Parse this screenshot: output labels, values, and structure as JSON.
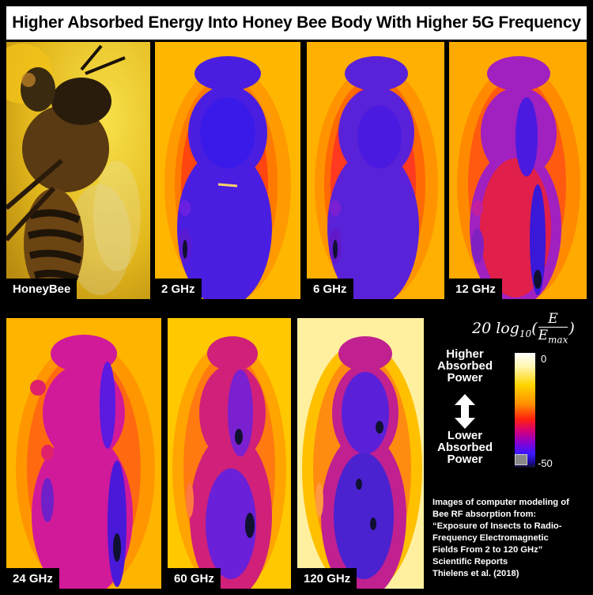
{
  "title": "Higher Absorbed Energy Into Honey Bee Body With Higher 5G Frequency",
  "panels": [
    {
      "label": "HoneyBee"
    },
    {
      "label": "2 GHz"
    },
    {
      "label": "6 GHz"
    },
    {
      "label": "12 GHz"
    },
    {
      "label": "24 GHz"
    },
    {
      "label": "60 GHz"
    },
    {
      "label": "120 GHz"
    }
  ],
  "legend": {
    "formula_prefix": "20 log",
    "formula_sub": "10",
    "formula_num": "E",
    "formula_den": "E",
    "formula_den_sub": "max",
    "tick_top": "0",
    "tick_bottom": "-50",
    "higher_lines": [
      "Higher",
      "Absorbed",
      "Power"
    ],
    "lower_lines": [
      "Lower",
      "Absorbed",
      "Power"
    ]
  },
  "caption": [
    "Images of computer modeling of",
    "Bee RF absorption from:",
    "“Exposure of Insects to Radio-",
    "Frequency Electromagnetic",
    "Fields From 2 to 120 GHz”",
    "Scientific Reports",
    "Thielens et al. (2018)"
  ]
}
